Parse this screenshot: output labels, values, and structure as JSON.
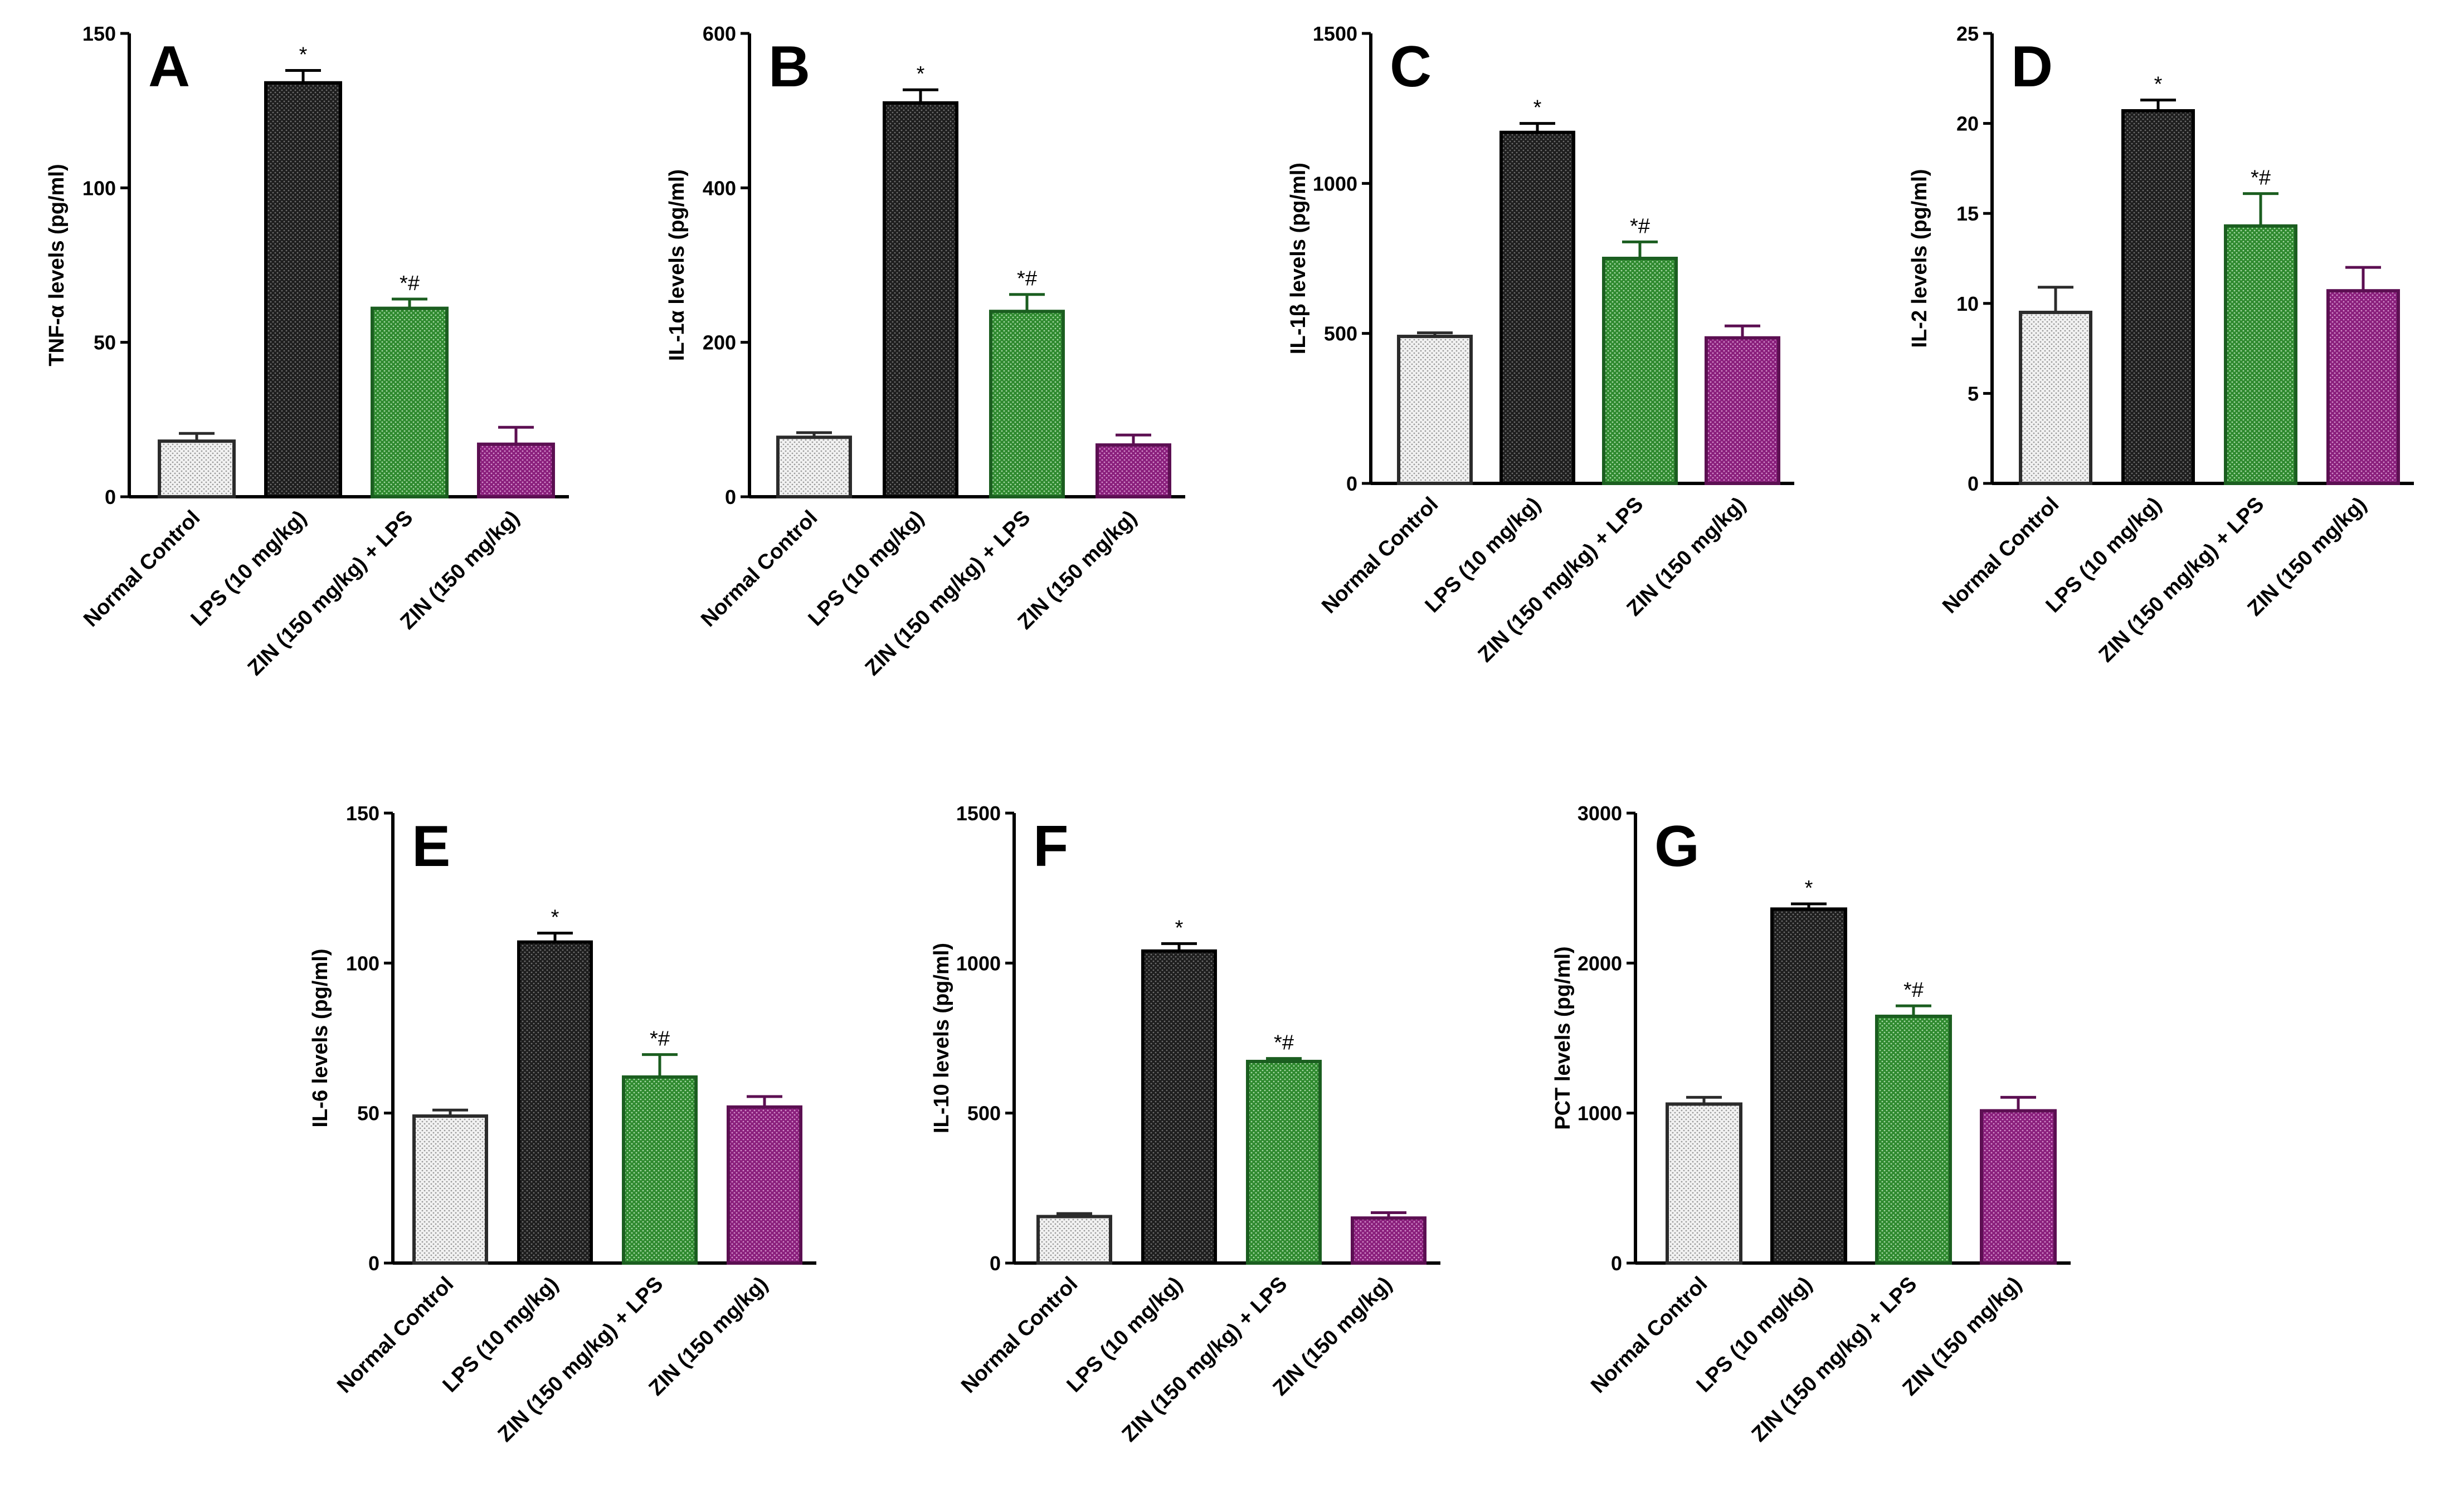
{
  "figure": {
    "categories": [
      "Normal Control",
      "LPS (10 mg/kg)",
      "ZIN (150 mg/kg) + LPS",
      "ZIN (150 mg/kg)"
    ],
    "bar_styles": [
      {
        "fill": "#f2f2f2",
        "stroke": "#2b2b2b",
        "dot": "#9a9a9a"
      },
      {
        "fill": "#1e1e1e",
        "stroke": "#000000",
        "dot": "#6e6e6e"
      },
      {
        "fill": "#2f8a2f",
        "stroke": "#1b5e20",
        "dot": "#a6d8a6"
      },
      {
        "fill": "#8a1f7c",
        "stroke": "#5c0f52",
        "dot": "#d28fca"
      }
    ]
  },
  "chart_data": [
    {
      "type": "bar",
      "panel": "A",
      "ylabel": "TNF-α levels (pg/ml)",
      "ylim": [
        0,
        150
      ],
      "yticks": [
        0,
        50,
        100,
        150
      ],
      "categories": [
        "Normal Control",
        "LPS (10 mg/kg)",
        "ZIN (150 mg/kg) + LPS",
        "ZIN (150 mg/kg)"
      ],
      "values": [
        18,
        134,
        61,
        17
      ],
      "errors": [
        2.5,
        4,
        3,
        5.5
      ],
      "annotations": [
        "",
        "*",
        "*#",
        ""
      ]
    },
    {
      "type": "bar",
      "panel": "B",
      "ylabel": "IL-1α levels (pg/ml)",
      "ylim": [
        0,
        600
      ],
      "yticks": [
        0,
        200,
        400,
        600
      ],
      "categories": [
        "Normal Control",
        "LPS (10 mg/kg)",
        "ZIN (150 mg/kg) + LPS",
        "ZIN (150 mg/kg)"
      ],
      "values": [
        77,
        510,
        240,
        67
      ],
      "errors": [
        6,
        17,
        22,
        13
      ],
      "annotations": [
        "",
        "*",
        "*#",
        ""
      ]
    },
    {
      "type": "bar",
      "panel": "C",
      "ylabel": "IL-1β levels (pg/ml)",
      "ylim": [
        0,
        1500
      ],
      "yticks": [
        0,
        500,
        1000,
        1500
      ],
      "categories": [
        "Normal Control",
        "LPS (10 mg/kg)",
        "ZIN (150 mg/kg) + LPS",
        "ZIN (150 mg/kg)"
      ],
      "values": [
        490,
        1170,
        750,
        485
      ],
      "errors": [
        12,
        30,
        55,
        40
      ],
      "annotations": [
        "",
        "*",
        "*#",
        ""
      ]
    },
    {
      "type": "bar",
      "panel": "D",
      "ylabel": "IL-2 levels (pg/ml)",
      "ylim": [
        0,
        25
      ],
      "yticks": [
        0,
        5,
        10,
        15,
        20,
        25
      ],
      "categories": [
        "Normal Control",
        "LPS (10 mg/kg)",
        "ZIN (150 mg/kg) + LPS",
        "ZIN (150 mg/kg)"
      ],
      "values": [
        9.5,
        20.7,
        14.3,
        10.7
      ],
      "errors": [
        1.4,
        0.6,
        1.8,
        1.3
      ],
      "annotations": [
        "",
        "*",
        "*#",
        ""
      ]
    },
    {
      "type": "bar",
      "panel": "E",
      "ylabel": "IL-6 levels (pg/ml)",
      "ylim": [
        0,
        150
      ],
      "yticks": [
        0,
        50,
        100,
        150
      ],
      "categories": [
        "Normal Control",
        "LPS (10 mg/kg)",
        "ZIN (150 mg/kg) + LPS",
        "ZIN (150 mg/kg)"
      ],
      "values": [
        49,
        107,
        62,
        52
      ],
      "errors": [
        2,
        3,
        7.5,
        3.5
      ],
      "annotations": [
        "",
        "*",
        "*#",
        ""
      ]
    },
    {
      "type": "bar",
      "panel": "F",
      "ylabel": "IL-10 levels (pg/ml)",
      "ylim": [
        0,
        1500
      ],
      "yticks": [
        0,
        500,
        1000,
        1500
      ],
      "categories": [
        "Normal Control",
        "LPS (10 mg/kg)",
        "ZIN (150 mg/kg) + LPS",
        "ZIN (150 mg/kg)"
      ],
      "values": [
        155,
        1040,
        672,
        150
      ],
      "errors": [
        10,
        25,
        10,
        18
      ],
      "annotations": [
        "",
        "*",
        "*#",
        ""
      ]
    },
    {
      "type": "bar",
      "panel": "G",
      "ylabel": "PCT levels (pg/ml)",
      "ylim": [
        0,
        3000
      ],
      "yticks": [
        0,
        1000,
        2000,
        3000
      ],
      "categories": [
        "Normal Control",
        "LPS (10 mg/kg)",
        "ZIN (150 mg/kg) + LPS",
        "ZIN (150 mg/kg)"
      ],
      "values": [
        1060,
        2360,
        1645,
        1015
      ],
      "errors": [
        45,
        35,
        70,
        90
      ],
      "annotations": [
        "",
        "*",
        "*#",
        ""
      ]
    }
  ]
}
